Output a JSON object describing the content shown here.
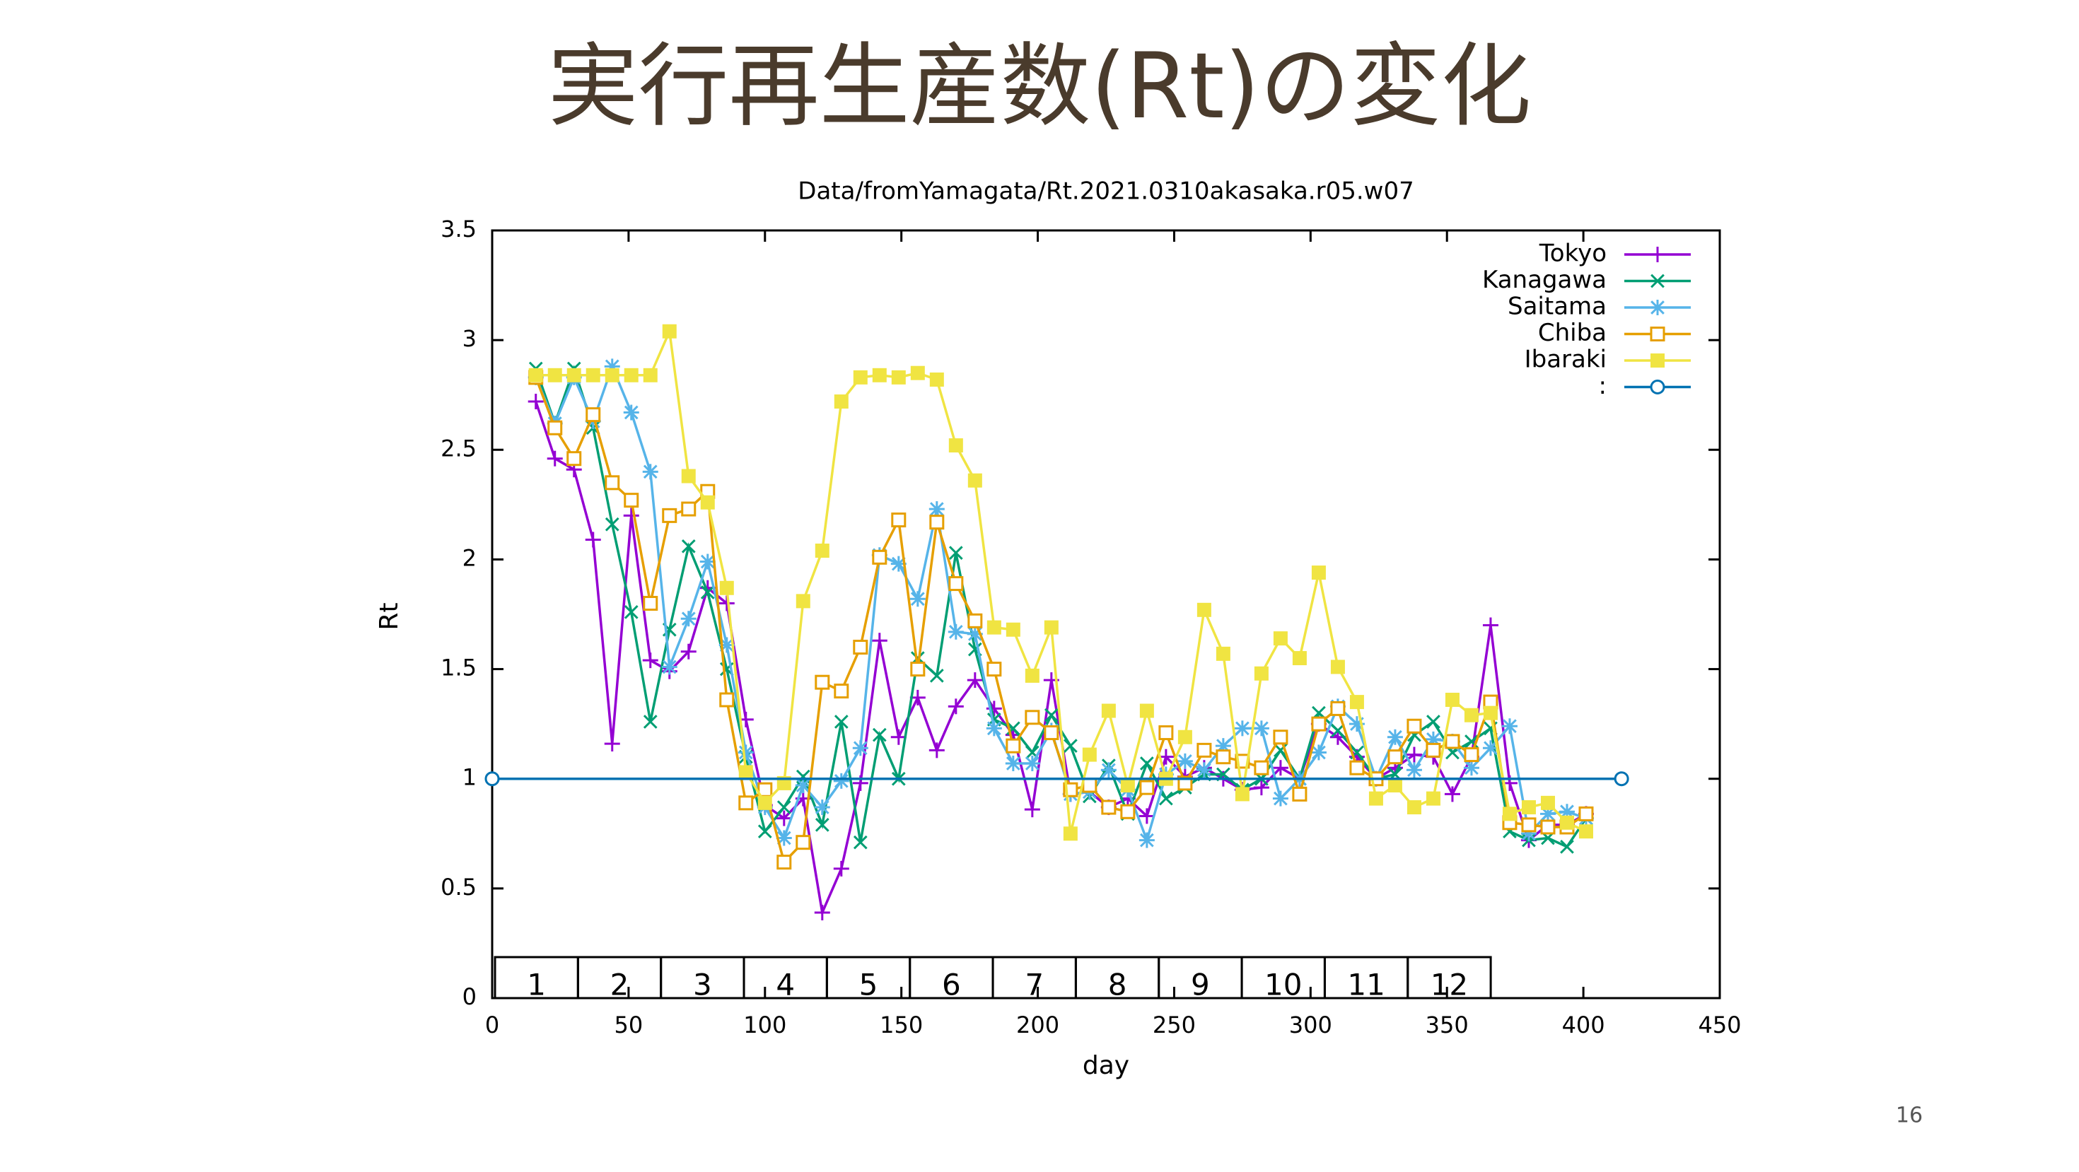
{
  "page_number": "16",
  "chart_data": {
    "type": "line",
    "title": "実行再生産数(Rt)の変化",
    "subtitle": "Data/fromYamagata/Rt.2021.0310akasaka.r05.w07",
    "x_label": "day",
    "y_label": "Rt",
    "xlim": [
      0,
      450
    ],
    "xticks": [
      0,
      50,
      100,
      150,
      200,
      250,
      300,
      350,
      400,
      450
    ],
    "ylim": [
      0,
      3.5
    ],
    "yticks": [
      0,
      0.5,
      1,
      1.5,
      2,
      2.5,
      3,
      3.5
    ],
    "legend": "top-right",
    "month_labels": [
      "1",
      "2",
      "3",
      "4",
      "5",
      "6",
      "7",
      "8",
      "9",
      "10",
      "11",
      "12"
    ],
    "x": [
      16,
      23,
      30,
      37,
      44,
      51,
      58,
      65,
      72,
      79,
      86,
      93,
      100,
      107,
      114,
      121,
      128,
      135,
      142,
      149,
      156,
      163,
      170,
      177,
      184,
      191,
      198,
      205,
      212,
      219,
      226,
      233,
      240,
      247,
      254,
      261,
      268,
      275,
      282,
      289,
      296,
      303,
      310,
      317,
      324,
      331,
      338,
      345,
      352,
      359,
      366,
      373,
      380,
      387,
      394,
      401
    ],
    "series": [
      {
        "name": "Tokyo",
        "color": "#9400d3",
        "marker": "plus",
        "values": [
          2.72,
          2.46,
          2.41,
          2.09,
          1.16,
          2.2,
          1.54,
          1.49,
          1.58,
          1.87,
          1.8,
          1.27,
          0.88,
          0.82,
          0.91,
          0.39,
          0.59,
          0.98,
          1.63,
          1.19,
          1.37,
          1.13,
          1.33,
          1.45,
          1.32,
          1.2,
          0.86,
          1.45,
          0.93,
          0.94,
          0.87,
          0.91,
          0.83,
          1.1,
          1.01,
          1.05,
          1.0,
          0.95,
          0.96,
          1.05,
          1.0,
          1.25,
          1.19,
          1.1,
          1.0,
          1.05,
          1.11,
          1.1,
          0.93,
          1.1,
          1.7,
          0.98,
          0.72,
          0.79,
          0.79,
          0.84
        ]
      },
      {
        "name": "Kanagawa",
        "color": "#009e73",
        "marker": "cross",
        "values": [
          2.87,
          2.62,
          2.87,
          2.6,
          2.16,
          1.76,
          1.26,
          1.68,
          2.06,
          1.85,
          1.5,
          1.1,
          0.76,
          0.87,
          1.01,
          0.79,
          1.26,
          0.71,
          1.2,
          1.0,
          1.55,
          1.47,
          2.03,
          1.59,
          1.27,
          1.23,
          1.12,
          1.29,
          1.15,
          0.92,
          1.06,
          0.84,
          1.07,
          0.91,
          0.96,
          1.02,
          1.02,
          0.95,
          1.0,
          1.13,
          1.0,
          1.3,
          1.22,
          1.12,
          1.0,
          1.02,
          1.2,
          1.26,
          1.12,
          1.17,
          1.23,
          0.76,
          0.72,
          0.73,
          0.69,
          0.82
        ]
      },
      {
        "name": "Saitama",
        "color": "#56b4e9",
        "marker": "star",
        "values": [
          2.83,
          2.62,
          2.83,
          2.63,
          2.88,
          2.67,
          2.4,
          1.51,
          1.73,
          1.99,
          1.61,
          1.12,
          0.87,
          0.73,
          0.97,
          0.87,
          0.99,
          1.14,
          2.02,
          1.98,
          1.82,
          2.23,
          1.67,
          1.66,
          1.23,
          1.07,
          1.07,
          1.22,
          0.93,
          0.94,
          1.04,
          0.95,
          0.72,
          1.02,
          1.08,
          1.04,
          1.15,
          1.23,
          1.23,
          0.91,
          1.0,
          1.12,
          1.33,
          1.25,
          1.0,
          1.19,
          1.04,
          1.18,
          1.17,
          1.05,
          1.14,
          1.24,
          0.75,
          0.84,
          0.85,
          0.82
        ]
      },
      {
        "name": "Chiba",
        "color": "#e69f00",
        "marker": "open-square",
        "values": [
          2.83,
          2.6,
          2.46,
          2.66,
          2.35,
          2.27,
          1.8,
          2.2,
          2.23,
          2.31,
          1.36,
          0.89,
          0.95,
          0.62,
          0.71,
          1.44,
          1.4,
          1.6,
          2.01,
          2.18,
          1.5,
          2.17,
          1.89,
          1.72,
          1.5,
          1.15,
          1.28,
          1.21,
          0.95,
          0.97,
          0.87,
          0.85,
          0.96,
          1.21,
          0.98,
          1.13,
          1.1,
          1.08,
          1.05,
          1.19,
          0.93,
          1.25,
          1.32,
          1.05,
          1.0,
          1.1,
          1.24,
          1.13,
          1.17,
          1.11,
          1.35,
          0.8,
          0.79,
          0.78,
          0.78,
          0.84
        ]
      },
      {
        "name": "Ibaraki",
        "color": "#f0e442",
        "marker": "filled-square",
        "values": [
          2.84,
          2.84,
          2.84,
          2.84,
          2.84,
          2.84,
          2.84,
          3.04,
          2.38,
          2.26,
          1.87,
          1.03,
          0.89,
          0.98,
          1.81,
          2.04,
          2.72,
          2.83,
          2.84,
          2.83,
          2.85,
          2.82,
          2.52,
          2.36,
          1.69,
          1.68,
          1.47,
          1.69,
          0.75,
          1.11,
          1.31,
          0.97,
          1.31,
          1.0,
          1.19,
          1.77,
          1.57,
          0.93,
          1.48,
          1.64,
          1.55,
          1.94,
          1.51,
          1.35,
          0.91,
          0.97,
          0.87,
          0.91,
          1.36,
          1.29,
          1.3,
          0.84,
          0.87,
          0.89,
          0.8,
          0.76
        ]
      },
      {
        "name": ":",
        "color": "#0072b2",
        "marker": "open-circle",
        "x": [
          0,
          414
        ],
        "values": [
          1,
          1
        ]
      }
    ]
  }
}
